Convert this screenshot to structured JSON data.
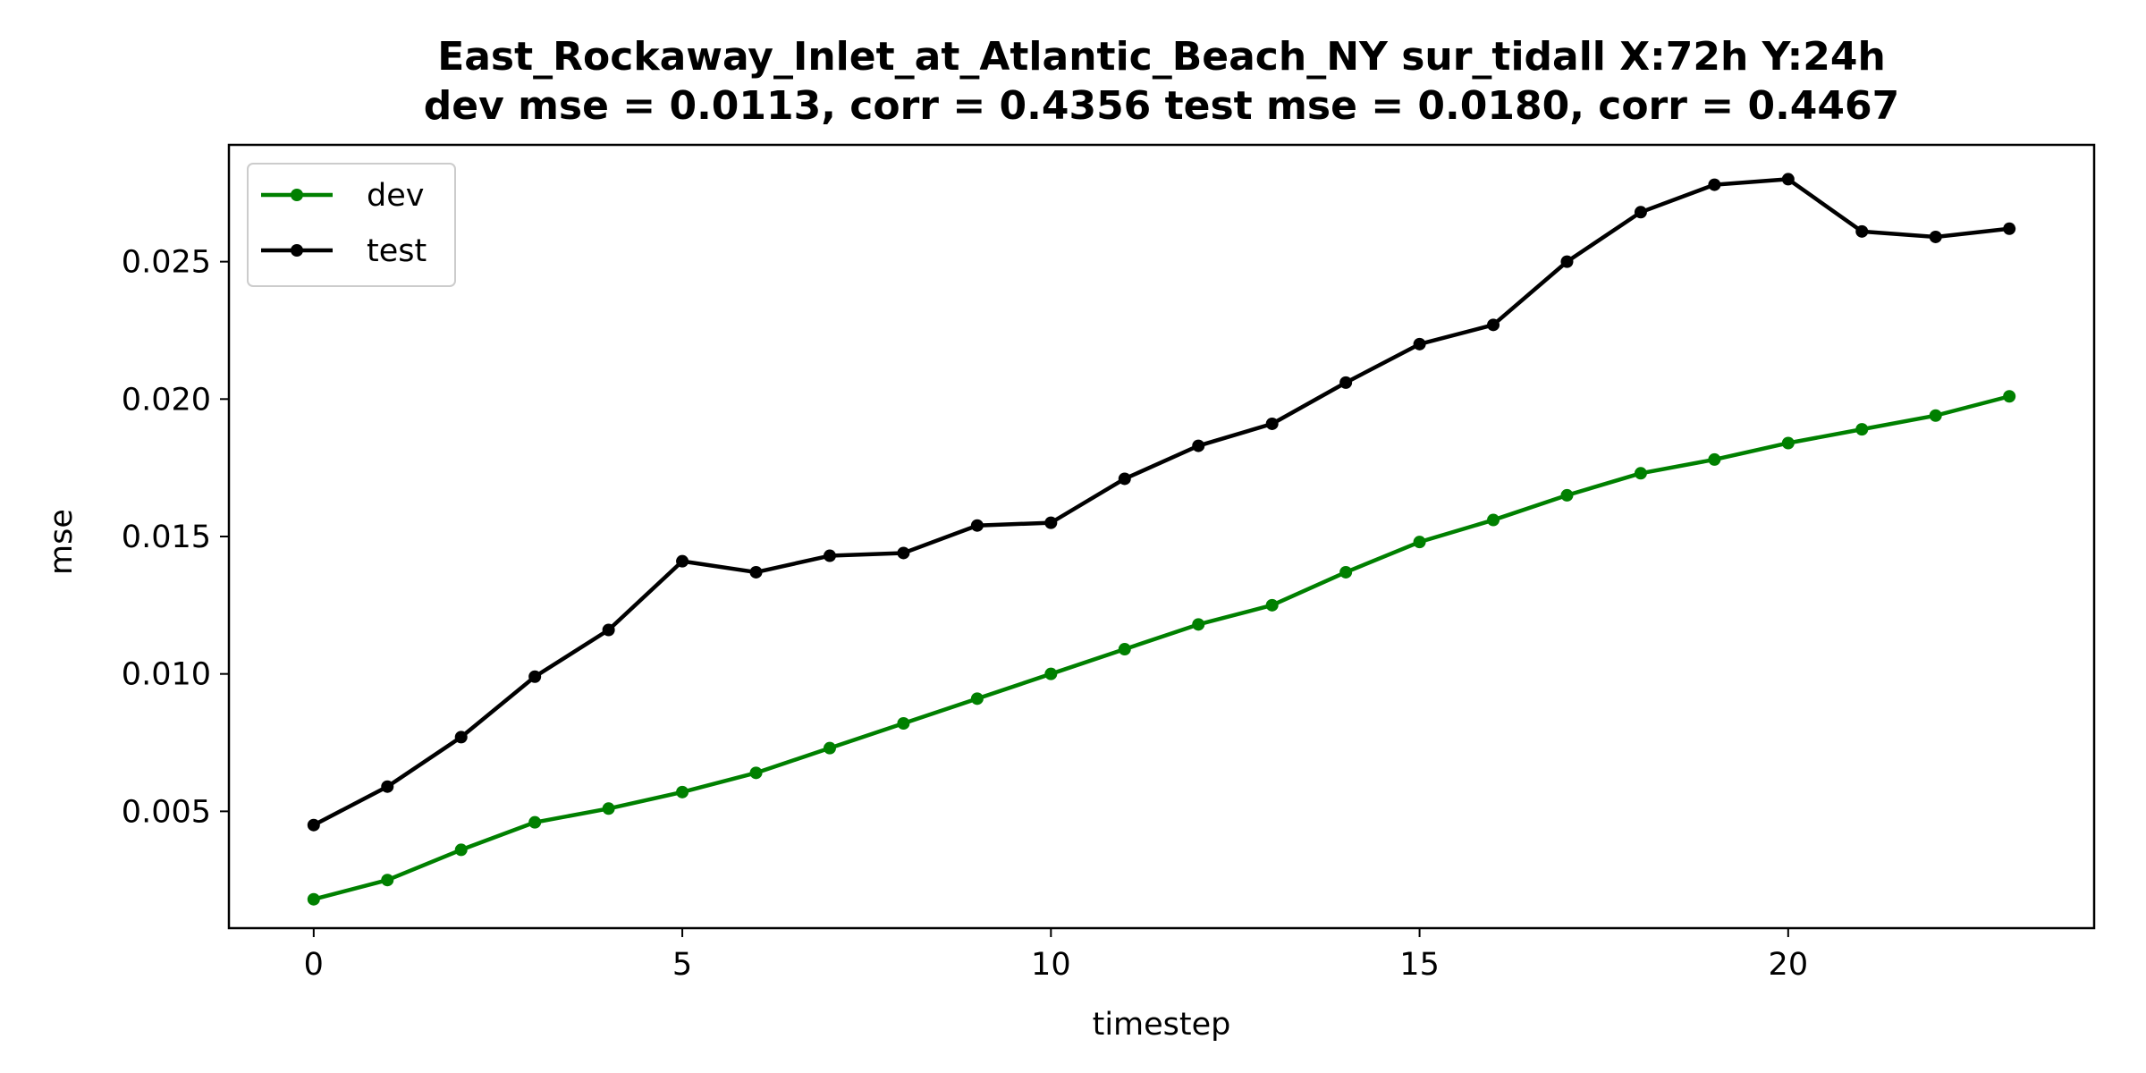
{
  "chart_data": {
    "type": "line",
    "title_line1": "East_Rockaway_Inlet_at_Atlantic_Beach_NY   sur_tidall   X:72h   Y:24h",
    "title_line2": "dev mse = 0.0113, corr = 0.4356   test mse = 0.0180, corr = 0.4467",
    "xlabel": "timestep",
    "ylabel": "mse",
    "xlim": [
      -1.15,
      24.15
    ],
    "ylim": [
      0.00075,
      0.02925
    ],
    "xticks": [
      0,
      5,
      10,
      15,
      20
    ],
    "xtick_labels": [
      "0",
      "5",
      "10",
      "15",
      "20"
    ],
    "yticks": [
      0.005,
      0.01,
      0.015,
      0.02,
      0.025
    ],
    "ytick_labels": [
      "0.005",
      "0.010",
      "0.015",
      "0.020",
      "0.025"
    ],
    "grid": false,
    "legend_position": "top-left",
    "x": [
      0,
      1,
      2,
      3,
      4,
      5,
      6,
      7,
      8,
      9,
      10,
      11,
      12,
      13,
      14,
      15,
      16,
      17,
      18,
      19,
      20,
      21,
      22,
      23
    ],
    "series": [
      {
        "name": "dev",
        "color": "#008000",
        "values": [
          0.0018,
          0.0025,
          0.0036,
          0.0046,
          0.0051,
          0.0057,
          0.0064,
          0.0073,
          0.0082,
          0.0091,
          0.01,
          0.0109,
          0.0118,
          0.0125,
          0.0137,
          0.0148,
          0.0156,
          0.0165,
          0.0173,
          0.0178,
          0.0184,
          0.0189,
          0.0194,
          0.0201
        ]
      },
      {
        "name": "test",
        "color": "#000000",
        "values": [
          0.0045,
          0.0059,
          0.0077,
          0.0099,
          0.0116,
          0.0141,
          0.0137,
          0.0143,
          0.0144,
          0.0154,
          0.0155,
          0.0171,
          0.0183,
          0.0191,
          0.0206,
          0.022,
          0.0227,
          0.025,
          0.0268,
          0.0278,
          0.028,
          0.0261,
          0.0259,
          0.0262
        ]
      }
    ]
  }
}
